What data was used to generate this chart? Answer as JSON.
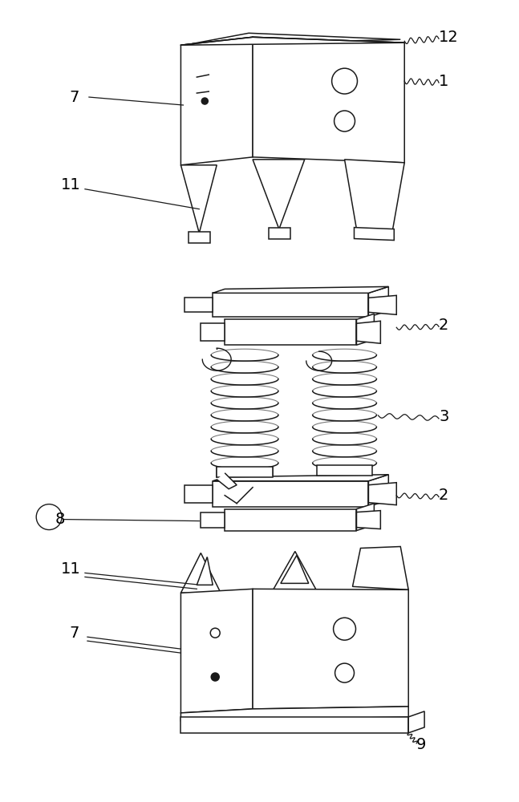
{
  "bg": "#ffffff",
  "lc": "#1a1a1a",
  "lw": 1.1,
  "fig_w": 6.47,
  "fig_h": 10.0
}
